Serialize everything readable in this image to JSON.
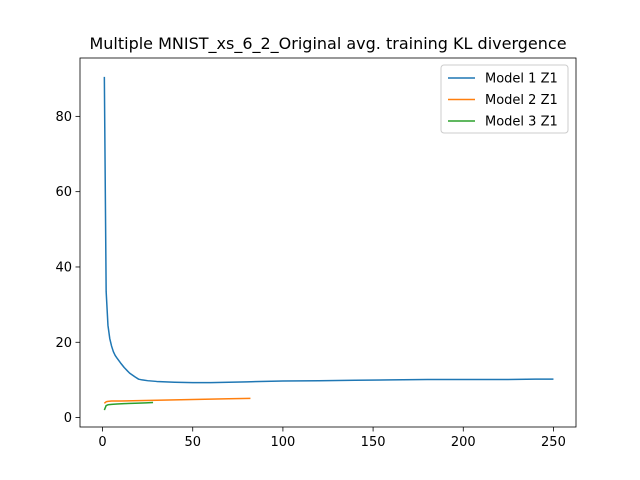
{
  "chart_data": {
    "type": "line",
    "title": "Multiple MNIST_xs_6_2_Original avg. training KL divergence",
    "xlabel": "",
    "ylabel": "",
    "xlim": [
      -12.5,
      262.5
    ],
    "ylim": [
      -2.5,
      95.5
    ],
    "xticks": [
      0,
      50,
      100,
      150,
      200,
      250
    ],
    "yticks": [
      0,
      20,
      40,
      60,
      80
    ],
    "legend_position": "top-right",
    "grid": false,
    "series": [
      {
        "name": "Model 1 Z1",
        "color": "#1f77b4",
        "x": [
          1,
          2,
          3,
          4,
          5,
          6,
          7,
          8,
          10,
          12,
          15,
          18,
          20,
          22,
          25,
          30,
          35,
          40,
          50,
          55,
          60,
          70,
          80,
          100,
          120,
          140,
          160,
          180,
          200,
          220,
          240,
          250
        ],
        "y": [
          90.5,
          33.5,
          24.5,
          21.0,
          19.0,
          17.5,
          16.5,
          15.8,
          14.5,
          13.3,
          11.8,
          10.8,
          10.2,
          10.0,
          9.8,
          9.6,
          9.5,
          9.4,
          9.3,
          9.3,
          9.3,
          9.4,
          9.5,
          9.7,
          9.8,
          9.9,
          10.0,
          10.1,
          10.1,
          10.1,
          10.2,
          10.2
        ]
      },
      {
        "name": "Model 2 Z1",
        "color": "#ff7f0e",
        "x": [
          1,
          2,
          3,
          5,
          10,
          20,
          30,
          40,
          50,
          60,
          70,
          82
        ],
        "y": [
          3.8,
          4.2,
          4.3,
          4.4,
          4.4,
          4.5,
          4.6,
          4.7,
          4.8,
          4.9,
          5.0,
          5.1
        ]
      },
      {
        "name": "Model 3 Z1",
        "color": "#2ca02c",
        "x": [
          1,
          2,
          3,
          5,
          8,
          12,
          18,
          24,
          28
        ],
        "y": [
          2.0,
          3.2,
          3.4,
          3.5,
          3.6,
          3.7,
          3.8,
          3.9,
          4.0
        ]
      }
    ]
  }
}
